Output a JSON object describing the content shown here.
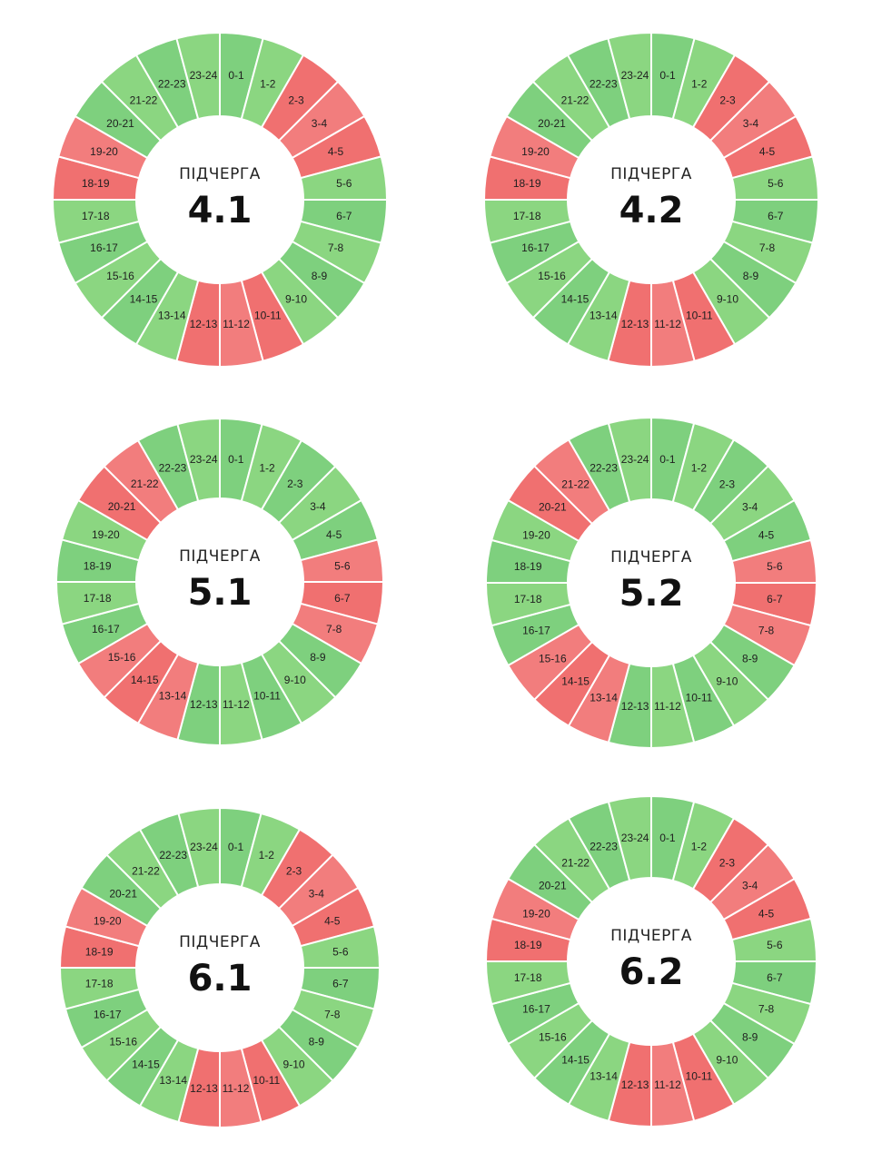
{
  "colors": {
    "on": "#7ed07e",
    "on_light": "#8bd681",
    "off": "#f07070",
    "off_light": "#f27d7d",
    "divider": "#ffffff"
  },
  "wheels": [
    {
      "title": "ПІДЧЕРГА",
      "number": "4.1",
      "hours": [
        {
          "label": "0-1",
          "state": "on"
        },
        {
          "label": "1-2",
          "state": "on"
        },
        {
          "label": "2-3",
          "state": "off"
        },
        {
          "label": "3-4",
          "state": "off"
        },
        {
          "label": "4-5",
          "state": "off"
        },
        {
          "label": "5-6",
          "state": "on"
        },
        {
          "label": "6-7",
          "state": "on"
        },
        {
          "label": "7-8",
          "state": "on"
        },
        {
          "label": "8-9",
          "state": "on"
        },
        {
          "label": "9-10",
          "state": "on"
        },
        {
          "label": "10-11",
          "state": "off"
        },
        {
          "label": "11-12",
          "state": "off"
        },
        {
          "label": "12-13",
          "state": "off"
        },
        {
          "label": "13-14",
          "state": "on"
        },
        {
          "label": "14-15",
          "state": "on"
        },
        {
          "label": "15-16",
          "state": "on"
        },
        {
          "label": "16-17",
          "state": "on"
        },
        {
          "label": "17-18",
          "state": "on"
        },
        {
          "label": "18-19",
          "state": "off"
        },
        {
          "label": "19-20",
          "state": "off"
        },
        {
          "label": "20-21",
          "state": "on"
        },
        {
          "label": "21-22",
          "state": "on"
        },
        {
          "label": "22-23",
          "state": "on"
        },
        {
          "label": "23-24",
          "state": "on"
        }
      ]
    },
    {
      "title": "ПІДЧЕРГА",
      "number": "4.2",
      "hours": [
        {
          "label": "0-1",
          "state": "on"
        },
        {
          "label": "1-2",
          "state": "on"
        },
        {
          "label": "2-3",
          "state": "off"
        },
        {
          "label": "3-4",
          "state": "off"
        },
        {
          "label": "4-5",
          "state": "off"
        },
        {
          "label": "5-6",
          "state": "on"
        },
        {
          "label": "6-7",
          "state": "on"
        },
        {
          "label": "7-8",
          "state": "on"
        },
        {
          "label": "8-9",
          "state": "on"
        },
        {
          "label": "9-10",
          "state": "on"
        },
        {
          "label": "10-11",
          "state": "off"
        },
        {
          "label": "11-12",
          "state": "off"
        },
        {
          "label": "12-13",
          "state": "off"
        },
        {
          "label": "13-14",
          "state": "on"
        },
        {
          "label": "14-15",
          "state": "on"
        },
        {
          "label": "15-16",
          "state": "on"
        },
        {
          "label": "16-17",
          "state": "on"
        },
        {
          "label": "17-18",
          "state": "on"
        },
        {
          "label": "18-19",
          "state": "off"
        },
        {
          "label": "19-20",
          "state": "off"
        },
        {
          "label": "20-21",
          "state": "on"
        },
        {
          "label": "21-22",
          "state": "on"
        },
        {
          "label": "22-23",
          "state": "on"
        },
        {
          "label": "23-24",
          "state": "on"
        }
      ]
    },
    {
      "title": "ПІДЧЕРГА",
      "number": "5.1",
      "hours": [
        {
          "label": "0-1",
          "state": "on"
        },
        {
          "label": "1-2",
          "state": "on"
        },
        {
          "label": "2-3",
          "state": "on"
        },
        {
          "label": "3-4",
          "state": "on"
        },
        {
          "label": "4-5",
          "state": "on"
        },
        {
          "label": "5-6",
          "state": "off"
        },
        {
          "label": "6-7",
          "state": "off"
        },
        {
          "label": "7-8",
          "state": "off"
        },
        {
          "label": "8-9",
          "state": "on"
        },
        {
          "label": "9-10",
          "state": "on"
        },
        {
          "label": "10-11",
          "state": "on"
        },
        {
          "label": "11-12",
          "state": "on"
        },
        {
          "label": "12-13",
          "state": "on"
        },
        {
          "label": "13-14",
          "state": "off"
        },
        {
          "label": "14-15",
          "state": "off"
        },
        {
          "label": "15-16",
          "state": "off"
        },
        {
          "label": "16-17",
          "state": "on"
        },
        {
          "label": "17-18",
          "state": "on"
        },
        {
          "label": "18-19",
          "state": "on"
        },
        {
          "label": "19-20",
          "state": "on"
        },
        {
          "label": "20-21",
          "state": "off"
        },
        {
          "label": "21-22",
          "state": "off"
        },
        {
          "label": "22-23",
          "state": "on"
        },
        {
          "label": "23-24",
          "state": "on"
        }
      ]
    },
    {
      "title": "ПІДЧЕРГА",
      "number": "5.2",
      "hours": [
        {
          "label": "0-1",
          "state": "on"
        },
        {
          "label": "1-2",
          "state": "on"
        },
        {
          "label": "2-3",
          "state": "on"
        },
        {
          "label": "3-4",
          "state": "on"
        },
        {
          "label": "4-5",
          "state": "on"
        },
        {
          "label": "5-6",
          "state": "off"
        },
        {
          "label": "6-7",
          "state": "off"
        },
        {
          "label": "7-8",
          "state": "off"
        },
        {
          "label": "8-9",
          "state": "on"
        },
        {
          "label": "9-10",
          "state": "on"
        },
        {
          "label": "10-11",
          "state": "on"
        },
        {
          "label": "11-12",
          "state": "on"
        },
        {
          "label": "12-13",
          "state": "on"
        },
        {
          "label": "13-14",
          "state": "off"
        },
        {
          "label": "14-15",
          "state": "off"
        },
        {
          "label": "15-16",
          "state": "off"
        },
        {
          "label": "16-17",
          "state": "on"
        },
        {
          "label": "17-18",
          "state": "on"
        },
        {
          "label": "18-19",
          "state": "on"
        },
        {
          "label": "19-20",
          "state": "on"
        },
        {
          "label": "20-21",
          "state": "off"
        },
        {
          "label": "21-22",
          "state": "off"
        },
        {
          "label": "22-23",
          "state": "on"
        },
        {
          "label": "23-24",
          "state": "on"
        }
      ]
    },
    {
      "title": "ПІДЧЕРГА",
      "number": "6.1",
      "hours": [
        {
          "label": "0-1",
          "state": "on"
        },
        {
          "label": "1-2",
          "state": "on"
        },
        {
          "label": "2-3",
          "state": "off"
        },
        {
          "label": "3-4",
          "state": "off"
        },
        {
          "label": "4-5",
          "state": "off"
        },
        {
          "label": "5-6",
          "state": "on"
        },
        {
          "label": "6-7",
          "state": "on"
        },
        {
          "label": "7-8",
          "state": "on"
        },
        {
          "label": "8-9",
          "state": "on"
        },
        {
          "label": "9-10",
          "state": "on"
        },
        {
          "label": "10-11",
          "state": "off"
        },
        {
          "label": "11-12",
          "state": "off"
        },
        {
          "label": "12-13",
          "state": "off"
        },
        {
          "label": "13-14",
          "state": "on"
        },
        {
          "label": "14-15",
          "state": "on"
        },
        {
          "label": "15-16",
          "state": "on"
        },
        {
          "label": "16-17",
          "state": "on"
        },
        {
          "label": "17-18",
          "state": "on"
        },
        {
          "label": "18-19",
          "state": "off"
        },
        {
          "label": "19-20",
          "state": "off"
        },
        {
          "label": "20-21",
          "state": "on"
        },
        {
          "label": "21-22",
          "state": "on"
        },
        {
          "label": "22-23",
          "state": "on"
        },
        {
          "label": "23-24",
          "state": "on"
        }
      ]
    },
    {
      "title": "ПІДЧЕРГА",
      "number": "6.2",
      "hours": [
        {
          "label": "0-1",
          "state": "on"
        },
        {
          "label": "1-2",
          "state": "on"
        },
        {
          "label": "2-3",
          "state": "off"
        },
        {
          "label": "3-4",
          "state": "off"
        },
        {
          "label": "4-5",
          "state": "off"
        },
        {
          "label": "5-6",
          "state": "on"
        },
        {
          "label": "6-7",
          "state": "on"
        },
        {
          "label": "7-8",
          "state": "on"
        },
        {
          "label": "8-9",
          "state": "on"
        },
        {
          "label": "9-10",
          "state": "on"
        },
        {
          "label": "10-11",
          "state": "off"
        },
        {
          "label": "11-12",
          "state": "off"
        },
        {
          "label": "12-13",
          "state": "off"
        },
        {
          "label": "13-14",
          "state": "on"
        },
        {
          "label": "14-15",
          "state": "on"
        },
        {
          "label": "15-16",
          "state": "on"
        },
        {
          "label": "16-17",
          "state": "on"
        },
        {
          "label": "17-18",
          "state": "on"
        },
        {
          "label": "18-19",
          "state": "off"
        },
        {
          "label": "19-20",
          "state": "off"
        },
        {
          "label": "20-21",
          "state": "on"
        },
        {
          "label": "21-22",
          "state": "on"
        },
        {
          "label": "22-23",
          "state": "on"
        },
        {
          "label": "23-24",
          "state": "on"
        }
      ]
    }
  ]
}
